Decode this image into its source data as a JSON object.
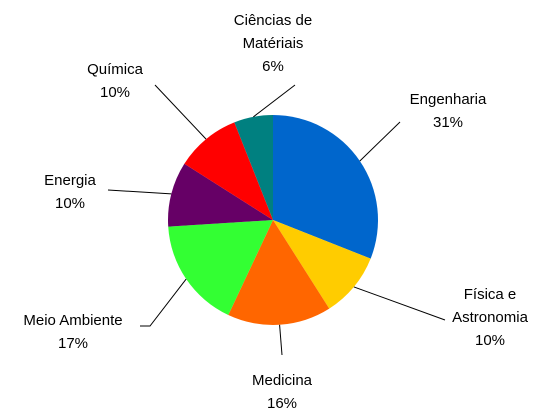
{
  "chart_data": {
    "type": "pie",
    "categories": [
      "Engenharia",
      "Física e Astronomia",
      "Medicina",
      "Meio Ambiente",
      "Energia",
      "Química",
      "Ciências de Matériais"
    ],
    "values": [
      31,
      10,
      16,
      17,
      10,
      10,
      6
    ],
    "value_labels": [
      "31%",
      "10%",
      "16%",
      "17%",
      "10%",
      "10%",
      "6%"
    ],
    "colors": [
      "#0066cc",
      "#ffcc00",
      "#ff6600",
      "#33ff33",
      "#660066",
      "#ff0000",
      "#008080"
    ]
  }
}
